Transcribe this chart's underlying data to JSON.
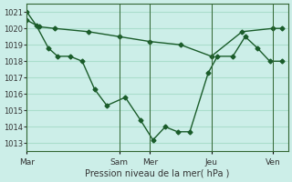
{
  "background_color": "#cceee8",
  "grid_color": "#aaddcc",
  "line_color": "#1a5c2a",
  "title": "Pression niveau de la mer( hPa )",
  "ylim": [
    1012.5,
    1021.5
  ],
  "yticks": [
    1013,
    1014,
    1015,
    1016,
    1017,
    1018,
    1019,
    1020,
    1021
  ],
  "xtick_labels": [
    "Mar",
    "Sam",
    "Mer",
    "Jeu",
    "Ven"
  ],
  "xtick_positions": [
    0,
    3,
    4,
    6,
    8
  ],
  "line1_x": [
    0,
    0.3,
    0.7,
    1.0,
    1.4,
    1.8,
    2.2,
    2.6,
    3.2,
    3.7,
    4.1,
    4.5,
    4.9,
    5.3,
    5.9,
    6.2,
    6.7,
    7.1,
    7.5,
    7.9,
    8.3
  ],
  "line1_y": [
    1021.0,
    1020.2,
    1018.8,
    1018.3,
    1018.3,
    1018.0,
    1016.3,
    1015.3,
    1015.8,
    1014.4,
    1013.2,
    1014.0,
    1013.7,
    1013.7,
    1017.3,
    1018.3,
    1018.3,
    1019.5,
    1018.8,
    1018.0,
    1018.0
  ],
  "line2_x": [
    0,
    0.4,
    0.9,
    2.0,
    3.0,
    4.0,
    5.0,
    6.0,
    7.0,
    8.0,
    8.3
  ],
  "line2_y": [
    1020.5,
    1020.1,
    1020.0,
    1019.8,
    1019.5,
    1019.2,
    1019.0,
    1018.3,
    1019.8,
    1020.0,
    1020.0
  ],
  "vline_positions": [
    0,
    3,
    4,
    6,
    8
  ]
}
